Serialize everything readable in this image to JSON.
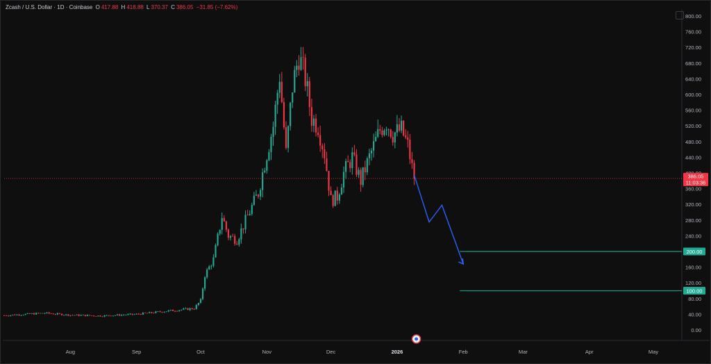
{
  "header": {
    "symbol": "Zcash / U.S. Dollar · 1D · Coinbase",
    "open_label": "O",
    "open": "417.88",
    "high_label": "H",
    "high": "418.88",
    "low_label": "L",
    "low": "370.37",
    "close_label": "C",
    "close": "386.05",
    "change": "−31.85 (−7.62%)"
  },
  "price_tag": {
    "price": "386.05",
    "countdown": "11:03:36"
  },
  "levels": [
    {
      "value": 200,
      "label": "200.00"
    },
    {
      "value": 100,
      "label": "100.00"
    }
  ],
  "colors": {
    "up": "#22ab94",
    "down": "#f23645",
    "level": "#22ab94",
    "projection": "#2962ff",
    "background": "#0f0f0f"
  },
  "chart_data": {
    "type": "candlestick",
    "title": "Zcash / U.S. Dollar · 1D · Coinbase",
    "y_ticks": [
      0,
      40,
      80,
      120,
      160,
      200,
      240,
      280,
      320,
      360,
      400,
      440,
      480,
      520,
      560,
      600,
      640,
      680,
      720,
      760,
      800
    ],
    "y_tick_labels": [
      "0.00",
      "40.00",
      "80.00",
      "120.00",
      "160.00",
      "200.00",
      "240.00",
      "280.00",
      "320.00",
      "360.00",
      "400.00",
      "440.00",
      "480.00",
      "520.00",
      "560.00",
      "600.00",
      "640.00",
      "680.00",
      "720.00",
      "760.00",
      "800.00"
    ],
    "ylim": [
      -10,
      820
    ],
    "x_ticks": [
      {
        "label": "Aug",
        "date": "2025-08-01",
        "bold": false
      },
      {
        "label": "Sep",
        "date": "2025-09-01",
        "bold": false
      },
      {
        "label": "Oct",
        "date": "2025-10-01",
        "bold": false
      },
      {
        "label": "Nov",
        "date": "2025-11-01",
        "bold": false
      },
      {
        "label": "Dec",
        "date": "2025-12-01",
        "bold": false
      },
      {
        "label": "2026",
        "date": "2026-01-01",
        "bold": true
      },
      {
        "label": "Feb",
        "date": "2026-02-01",
        "bold": false
      },
      {
        "label": "Mar",
        "date": "2026-03-01",
        "bold": false
      },
      {
        "label": "Apr",
        "date": "2026-04-01",
        "bold": false
      },
      {
        "label": "May",
        "date": "2026-05-01",
        "bold": false
      }
    ],
    "start_date": "2025-07-01",
    "close_series": [
      {
        "date": "2025-07-01",
        "close": 37
      },
      {
        "date": "2025-07-20",
        "close": 43
      },
      {
        "date": "2025-08-01",
        "close": 38
      },
      {
        "date": "2025-08-15",
        "close": 36
      },
      {
        "date": "2025-09-01",
        "close": 40
      },
      {
        "date": "2025-09-15",
        "close": 48
      },
      {
        "date": "2025-09-28",
        "close": 55
      },
      {
        "date": "2025-10-01",
        "close": 75
      },
      {
        "date": "2025-10-03",
        "close": 140
      },
      {
        "date": "2025-10-07",
        "close": 180
      },
      {
        "date": "2025-10-11",
        "close": 290
      },
      {
        "date": "2025-10-14",
        "close": 240
      },
      {
        "date": "2025-10-18",
        "close": 230
      },
      {
        "date": "2025-10-23",
        "close": 290
      },
      {
        "date": "2025-10-28",
        "close": 350
      },
      {
        "date": "2025-11-01",
        "close": 450
      },
      {
        "date": "2025-11-04",
        "close": 520
      },
      {
        "date": "2025-11-07",
        "close": 650
      },
      {
        "date": "2025-11-10",
        "close": 450
      },
      {
        "date": "2025-11-13",
        "close": 620
      },
      {
        "date": "2025-11-16",
        "close": 700
      },
      {
        "date": "2025-11-19",
        "close": 640
      },
      {
        "date": "2025-11-22",
        "close": 540
      },
      {
        "date": "2025-11-25",
        "close": 520
      },
      {
        "date": "2025-11-28",
        "close": 450
      },
      {
        "date": "2025-12-01",
        "close": 330
      },
      {
        "date": "2025-12-04",
        "close": 340
      },
      {
        "date": "2025-12-07",
        "close": 400
      },
      {
        "date": "2025-12-11",
        "close": 440
      },
      {
        "date": "2025-12-15",
        "close": 380
      },
      {
        "date": "2025-12-19",
        "close": 440
      },
      {
        "date": "2025-12-24",
        "close": 510
      },
      {
        "date": "2025-12-27",
        "close": 530
      },
      {
        "date": "2025-12-30",
        "close": 500
      },
      {
        "date": "2026-01-03",
        "close": 510
      },
      {
        "date": "2026-01-06",
        "close": 470
      },
      {
        "date": "2026-01-09",
        "close": 386
      }
    ],
    "projection": [
      {
        "date": "2026-01-09",
        "value": 395
      },
      {
        "date": "2026-01-16",
        "value": 275
      },
      {
        "date": "2026-01-22",
        "value": 318
      },
      {
        "date": "2026-02-01",
        "value": 168
      }
    ],
    "last_price": 386.05
  }
}
